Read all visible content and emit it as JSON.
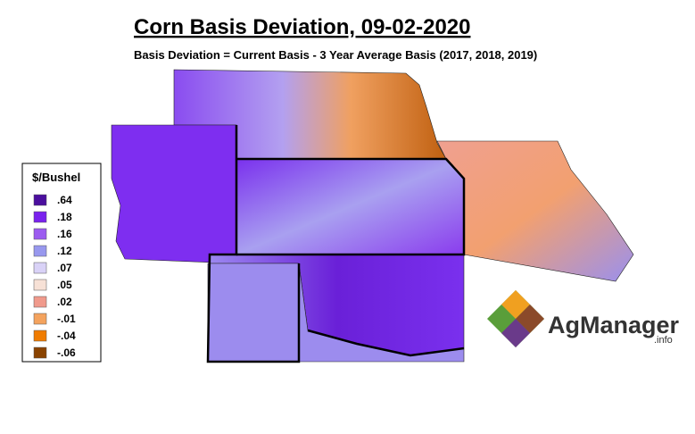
{
  "header": {
    "title": "Corn Basis Deviation, 09-02-2020",
    "subtitle": "Basis Deviation = Current Basis - 3 Year Average Basis (2017, 2018, 2019)"
  },
  "legend": {
    "title": "$/Bushel",
    "items": [
      {
        "label": ".64",
        "color": "#4b0f9e"
      },
      {
        "label": ".18",
        "color": "#7a22ee"
      },
      {
        "label": ".16",
        "color": "#9c5cf0"
      },
      {
        "label": ".12",
        "color": "#9898ee"
      },
      {
        "label": ".07",
        "color": "#d9d2f7"
      },
      {
        "label": ".05",
        "color": "#f7e1d6"
      },
      {
        "label": ".02",
        "color": "#f09a8c"
      },
      {
        "label": "-.01",
        "color": "#f4a35e"
      },
      {
        "label": "-.04",
        "color": "#f07c00"
      },
      {
        "label": "-.06",
        "color": "#8a4300"
      }
    ]
  },
  "logo": {
    "name": "AgManager",
    "suffix": ".info"
  }
}
